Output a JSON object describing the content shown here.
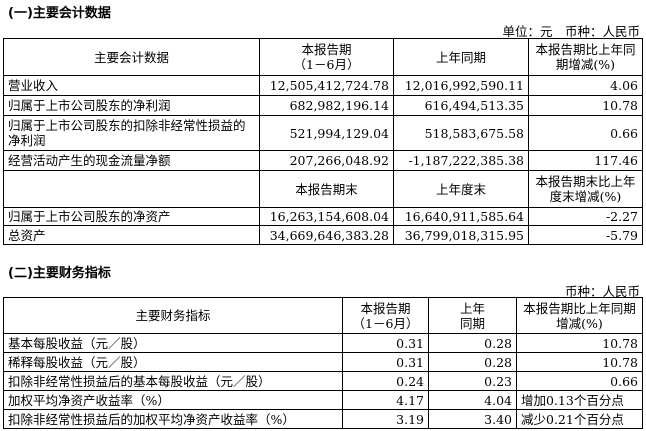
{
  "section1": {
    "title": "(一)主要会计数据",
    "unit": "单位：元　币种：人民币",
    "headers": [
      "主要会计数据",
      "本报告期\n（1－6月）",
      "上年同期",
      "本报告期比上年同期增减(%)"
    ],
    "rows": [
      [
        "营业收入",
        "12,505,412,724.78",
        "12,016,992,590.11",
        "4.06"
      ],
      [
        "归属于上市公司股东的净利润",
        "682,982,196.14",
        "616,494,513.35",
        "10.78"
      ],
      [
        "归属于上市公司股东的扣除非经常性损益的净利润",
        "521,994,129.04",
        "518,583,675.58",
        "0.66"
      ],
      [
        "经营活动产生的现金流量净额",
        "207,266,048.92",
        "-1,187,222,385.38",
        "117.46"
      ]
    ],
    "headers2": [
      "",
      "本报告期末",
      "上年度末",
      "本报告期末比上年度末增减(%)"
    ],
    "rows2": [
      [
        "归属于上市公司股东的净资产",
        "16,263,154,608.04",
        "16,640,911,585.64",
        "-2.27"
      ],
      [
        "总资产",
        "34,669,646,383.28",
        "36,799,018,315.95",
        "-5.79"
      ]
    ]
  },
  "section2": {
    "title": "(二)主要财务指标",
    "unit": "币种：人民币",
    "headers": [
      "主要财务指标",
      "本报告期\n（1－6月）",
      "上年\n同期",
      "本报告期比上年同期增减(%)"
    ],
    "rows": [
      [
        "基本每股收益（元／股）",
        "0.31",
        "0.28",
        "10.78"
      ],
      [
        "稀释每股收益（元／股）",
        "0.31",
        "0.28",
        "10.78"
      ],
      [
        "扣除非经常性损益后的基本每股收益（元／股）",
        "0.24",
        "0.23",
        "0.66"
      ],
      [
        "加权平均净资产收益率（%）",
        "4.17",
        "4.04",
        "增加0.13个百分点"
      ],
      [
        "扣除非经常性损益后的加权平均净资产收益率（%）",
        "3.19",
        "3.40",
        "减少0.21个百分点"
      ]
    ]
  }
}
